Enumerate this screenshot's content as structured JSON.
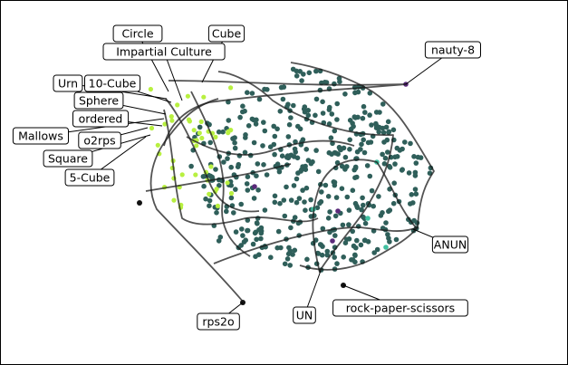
{
  "diagram": {
    "labels": [
      {
        "text": "Circle"
      },
      {
        "text": "Cube"
      },
      {
        "text": "Impartial Culture"
      },
      {
        "text": "nauty-8"
      },
      {
        "text": "Urn"
      },
      {
        "text": "10-Cube"
      },
      {
        "text": "Sphere"
      },
      {
        "text": "ordered"
      },
      {
        "text": "Mallows"
      },
      {
        "text": "o2rps"
      },
      {
        "text": "Square"
      },
      {
        "text": "5-Cube"
      },
      {
        "text": "ANUN"
      },
      {
        "text": "rock-paper-scissors"
      },
      {
        "text": "UN"
      },
      {
        "text": "rps2o"
      }
    ],
    "colors": {
      "dot_main": "#2f5f5a",
      "dot_accent": "#b8f040",
      "dot_purple": "#5a2a7a",
      "dot_teal": "#40c0a0",
      "path": "#1a1a1a"
    }
  }
}
